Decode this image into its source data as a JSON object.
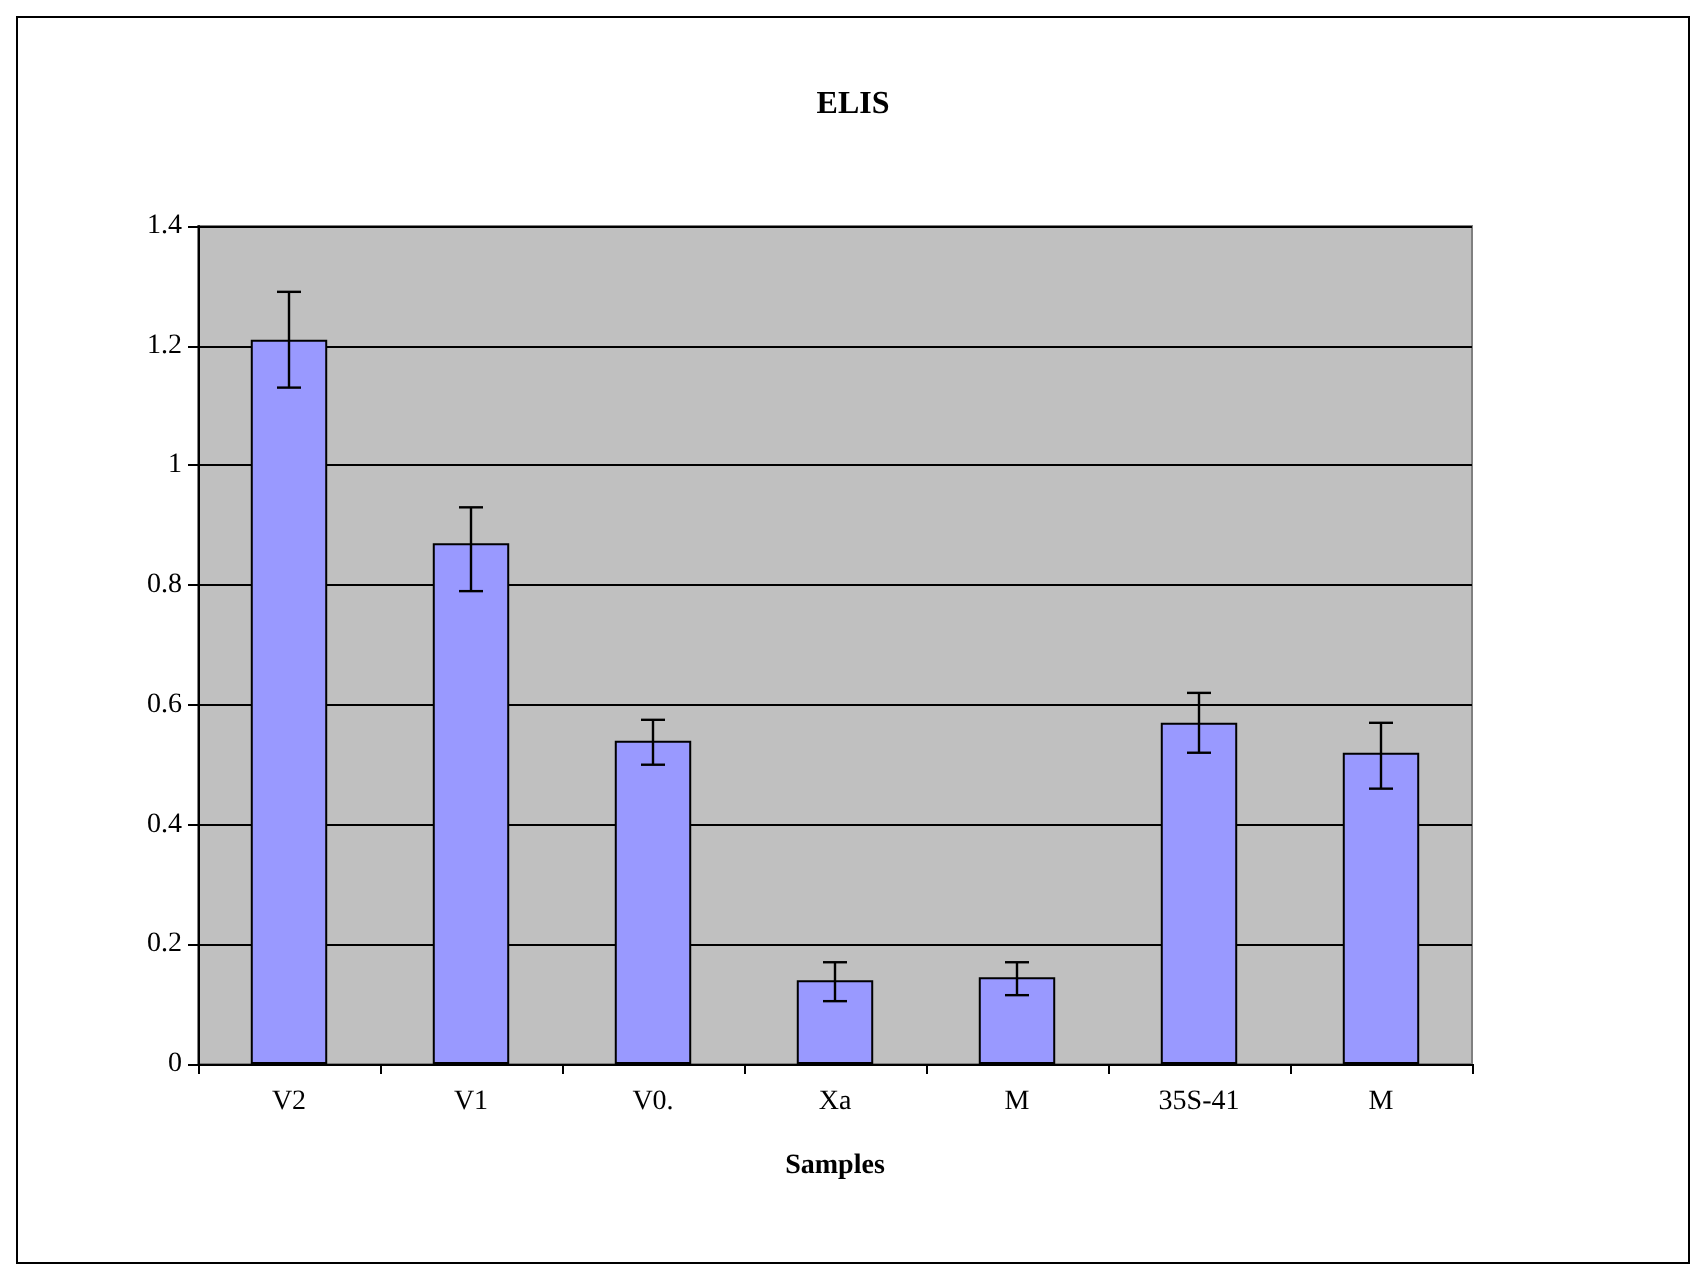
{
  "chart_data": {
    "type": "bar",
    "title": "ELIS",
    "xlabel": "Samples",
    "categories": [
      "V2",
      "V1",
      "V0.",
      "Xa",
      "M",
      "35S-41",
      "M"
    ],
    "values": [
      1.21,
      0.87,
      0.54,
      0.14,
      0.145,
      0.57,
      0.52
    ],
    "errors": [
      [
        1.13,
        1.29
      ],
      [
        0.79,
        0.93
      ],
      [
        0.5,
        0.575
      ],
      [
        0.105,
        0.17
      ],
      [
        0.115,
        0.17
      ],
      [
        0.52,
        0.62
      ],
      [
        0.46,
        0.57
      ]
    ],
    "color": "#9999ff",
    "ylim": [
      0,
      1.4
    ],
    "yticks": [
      0,
      0.2,
      0.4,
      0.6,
      0.8,
      1,
      1.2,
      1.4
    ],
    "grid": "y"
  }
}
